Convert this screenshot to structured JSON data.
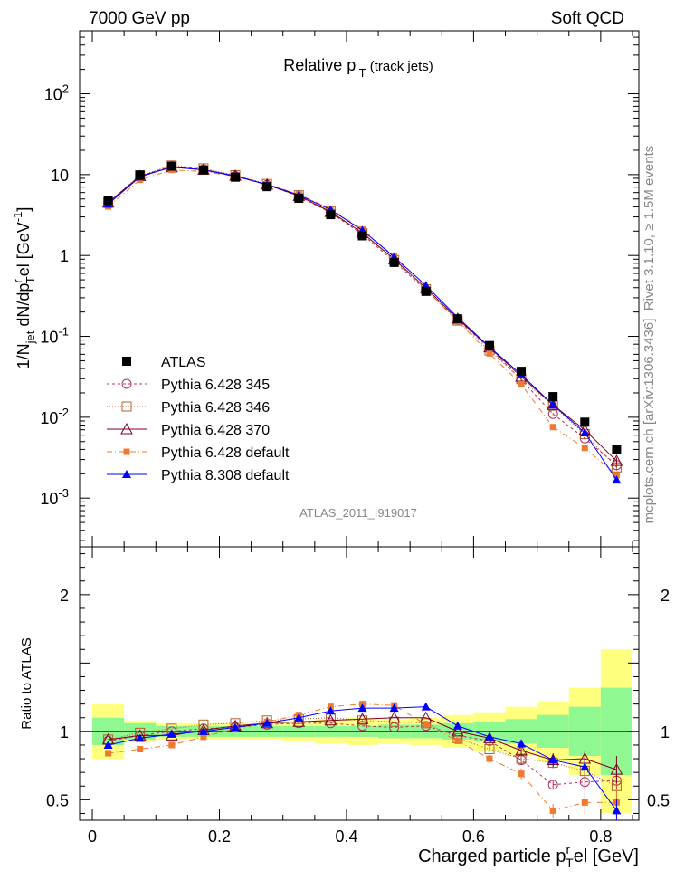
{
  "header": {
    "left": "7000 GeV pp",
    "right": "Soft QCD"
  },
  "chart_data": {
    "type": "line",
    "title": "Relative p_T (track jets)",
    "xlabel": "Charged particle p_T^rel [GeV]",
    "ylabel_main": "1/N_jet dN/dp_T^rel [GeV^-1]",
    "ylabel_ratio": "Ratio to ATLAS",
    "analysis_id": "ATLAS_2011_I919017",
    "side_label_top": "Rivet 3.1.10, ≥ 1.5M events",
    "side_label_bottom": "mcplots.cern.ch [arXiv:1306.3436]",
    "xlim": [
      -0.02,
      0.86
    ],
    "ylim_main": [
      0.00025,
      600
    ],
    "ylim_ratio": [
      0.35,
      2.35
    ],
    "log_y_main": true,
    "x_ticks": [
      "0",
      "0.2",
      "0.4",
      "0.6",
      "0.8"
    ],
    "y_ticks_main": [
      "10^-3",
      "10^-2",
      "10^-1",
      "1",
      "10",
      "10^2"
    ],
    "y_ticks_ratio": [
      "0.5",
      "1",
      "2"
    ],
    "legend_position": "bottom-left",
    "x": [
      0.025,
      0.075,
      0.125,
      0.175,
      0.225,
      0.275,
      0.325,
      0.375,
      0.425,
      0.475,
      0.525,
      0.575,
      0.625,
      0.675,
      0.725,
      0.775,
      0.825
    ],
    "data": {
      "name": "ATLAS",
      "values": [
        4.8,
        9.9,
        12.7,
        11.4,
        9.3,
        7.1,
        5.1,
        3.2,
        1.75,
        0.82,
        0.36,
        0.165,
        0.077,
        0.037,
        0.018,
        0.0087,
        0.004
      ]
    },
    "band_inner": [
      0.1,
      0.06,
      0.04,
      0.04,
      0.04,
      0.04,
      0.04,
      0.04,
      0.04,
      0.05,
      0.05,
      0.06,
      0.07,
      0.09,
      0.12,
      0.18,
      0.32
    ],
    "band_outer": [
      0.2,
      0.08,
      0.06,
      0.06,
      0.06,
      0.06,
      0.07,
      0.09,
      0.1,
      0.09,
      0.1,
      0.12,
      0.14,
      0.18,
      0.22,
      0.32,
      0.6
    ],
    "series": [
      {
        "name": "Pythia 6.428 345",
        "color": "#b03060",
        "dash": "3,3",
        "marker": "circle-open",
        "ratio": [
          0.93,
          0.97,
          1.0,
          1.02,
          1.03,
          1.05,
          1.06,
          1.06,
          1.04,
          1.03,
          1.04,
          0.97,
          0.93,
          0.79,
          0.61,
          0.63,
          0.64
        ],
        "ratio_err": [
          0,
          0,
          0,
          0,
          0,
          0,
          0,
          0,
          0,
          0,
          0,
          0,
          0.02,
          0.03,
          0.03,
          0.05,
          0.08
        ]
      },
      {
        "name": "Pythia 6.428 346",
        "color": "#b06030",
        "dash": "1,2",
        "marker": "square-open",
        "ratio": [
          0.94,
          0.99,
          1.02,
          1.05,
          1.06,
          1.08,
          1.09,
          1.1,
          1.08,
          1.07,
          1.06,
          0.95,
          0.87,
          0.8,
          0.77,
          0.71,
          0.6
        ],
        "ratio_err": [
          0,
          0,
          0,
          0,
          0,
          0,
          0,
          0,
          0,
          0,
          0,
          0,
          0.02,
          0.03,
          0.04,
          0.06,
          0.09
        ]
      },
      {
        "name": "Pythia 6.428 370",
        "color": "#800020",
        "dash": "",
        "marker": "triangle-open",
        "ratio": [
          0.94,
          0.97,
          0.97,
          1.01,
          1.04,
          1.06,
          1.07,
          1.08,
          1.09,
          1.1,
          1.1,
          1.0,
          0.95,
          0.86,
          0.79,
          0.8,
          0.72
        ],
        "ratio_err": [
          0,
          0,
          0,
          0,
          0,
          0,
          0,
          0,
          0,
          0,
          0,
          0,
          0.02,
          0.03,
          0.05,
          0.06,
          0.1
        ]
      },
      {
        "name": "Pythia 6.428 default",
        "color": "#f07830",
        "dash": "6,3,1,3",
        "marker": "square-filled",
        "ratio": [
          0.84,
          0.87,
          0.9,
          0.96,
          1.02,
          1.07,
          1.12,
          1.18,
          1.2,
          1.19,
          1.05,
          0.93,
          0.8,
          0.69,
          0.42,
          0.48,
          0.48
        ],
        "ratio_err": [
          0,
          0,
          0,
          0,
          0,
          0,
          0,
          0,
          0,
          0,
          0,
          0,
          0.03,
          0.04,
          0.05,
          0.08,
          0.1
        ]
      },
      {
        "name": "Pythia 8.308 default",
        "color": "#0000ff",
        "dash": "",
        "marker": "triangle-filled",
        "ratio": [
          0.9,
          0.95,
          0.98,
          1.0,
          1.03,
          1.06,
          1.1,
          1.15,
          1.17,
          1.17,
          1.18,
          1.04,
          0.96,
          0.91,
          0.79,
          0.74,
          0.42
        ],
        "ratio_err": [
          0,
          0,
          0,
          0,
          0,
          0,
          0,
          0,
          0,
          0,
          0,
          0,
          0.02,
          0.03,
          0.04,
          0.06,
          0.09
        ]
      }
    ]
  }
}
